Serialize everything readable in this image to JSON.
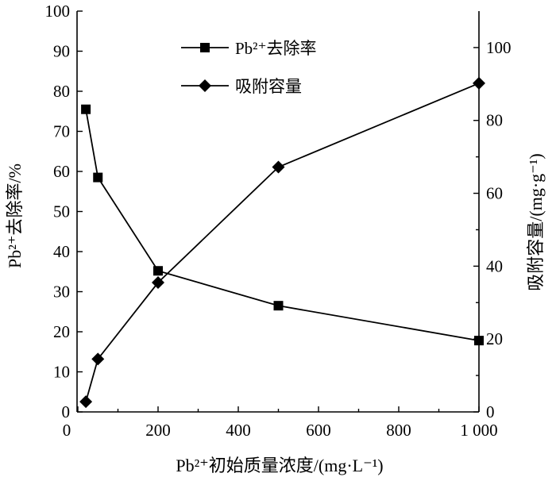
{
  "chart_data": {
    "type": "line",
    "x": [
      20,
      50,
      200,
      500,
      1000
    ],
    "xlabel": "Pb²⁺初始质量浓度/(mg·L⁻¹)",
    "ylabel": "Pb²⁺去除率/%",
    "y2label": "吸附容量/(mg·g⁻¹)",
    "xlim": [
      0,
      1000
    ],
    "ylim": [
      0,
      100
    ],
    "y2lim": [
      0,
      110
    ],
    "xticks": [
      0,
      200,
      400,
      600,
      800,
      1000
    ],
    "xtick_labels": [
      "0",
      "200",
      "400",
      "600",
      "800",
      "1 000"
    ],
    "yticks": [
      0,
      10,
      20,
      30,
      40,
      50,
      60,
      70,
      80,
      90,
      100
    ],
    "y2ticks": [
      0,
      20,
      40,
      60,
      80,
      100
    ],
    "grid": false,
    "legend_position": "top-center",
    "series": [
      {
        "name": "Pb²⁺去除率",
        "axis": "left",
        "marker": "square",
        "values": [
          75.5,
          58.5,
          35.2,
          26.5,
          17.8
        ]
      },
      {
        "name": "吸附容量",
        "axis": "right",
        "marker": "diamond",
        "values": [
          2.8,
          14.5,
          35.5,
          67.2,
          90.2
        ]
      }
    ]
  }
}
